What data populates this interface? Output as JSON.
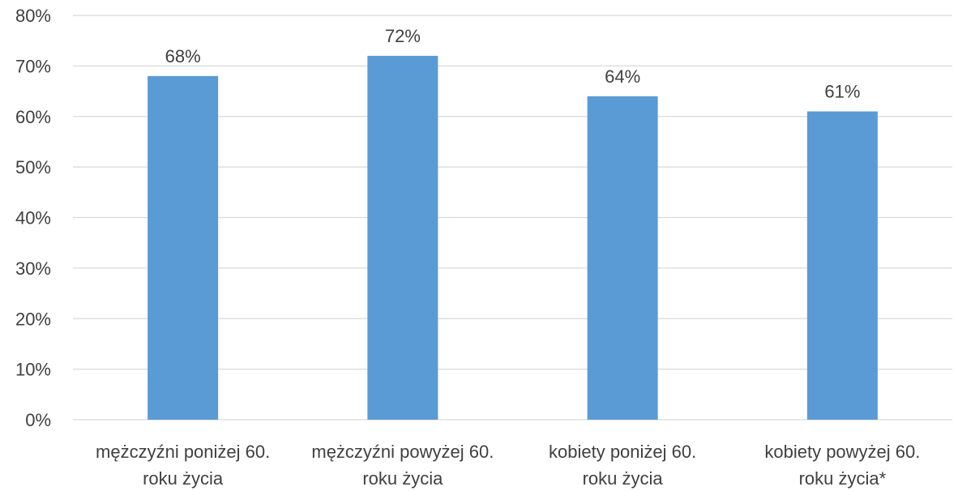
{
  "chart_data": {
    "type": "bar",
    "categories": [
      [
        "mężczyźni poniżej 60.",
        "roku życia"
      ],
      [
        "mężczyźni powyżej 60.",
        "roku życia"
      ],
      [
        "kobiety poniżej 60.",
        "roku życia"
      ],
      [
        "kobiety powyżej 60.",
        "roku życia*"
      ]
    ],
    "values": [
      68,
      72,
      64,
      61
    ],
    "value_labels": [
      "68%",
      "72%",
      "64%",
      "61%"
    ],
    "ylim": [
      0,
      80
    ],
    "y_ticks": [
      "0%",
      "10%",
      "20%",
      "30%",
      "40%",
      "50%",
      "60%",
      "70%",
      "80%"
    ],
    "y_tick_values": [
      0,
      10,
      20,
      30,
      40,
      50,
      60,
      70,
      80
    ],
    "grid": true,
    "legend": "none",
    "colors": {
      "bar": "#5B9BD5",
      "grid": "#D9D9D9",
      "text": "#404040"
    }
  }
}
